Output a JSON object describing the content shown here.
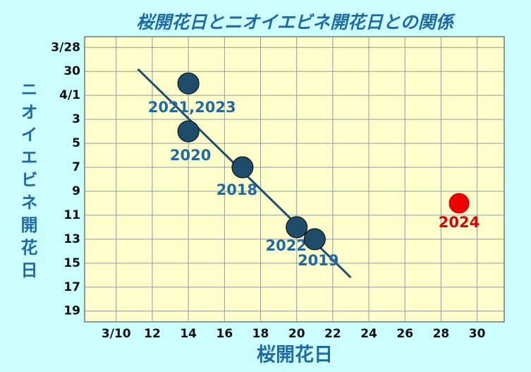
{
  "chart_data": {
    "type": "scatter",
    "title": "桜開花日とニオイエビネ開花日との関係",
    "x_label": "桜開花日",
    "y_label": "ニオイエビネ開花日",
    "x": [
      14,
      14,
      17,
      20,
      21,
      29
    ],
    "y": [
      31,
      35,
      38,
      43,
      44,
      41
    ],
    "labels": [
      "2021,2023",
      "2020",
      "2018",
      "2022",
      "2019",
      "2024"
    ],
    "colors": [
      "#1e4d6b",
      "#1e4d6b",
      "#1e4d6b",
      "#1e4d6b",
      "#1e4d6b",
      "#ee0000"
    ],
    "label_colors": [
      "#1f6aa5",
      "#1f6aa5",
      "#1f6aa5",
      "#1f6aa5",
      "#1f6aa5",
      "#dd0000"
    ],
    "trendline": {
      "x": [
        11.2,
        23.0
      ],
      "y": [
        29.8,
        47.2
      ],
      "color": "#1e4d6b"
    },
    "xlim": [
      8.25,
      31.5
    ],
    "xticks": [
      {
        "value": 10,
        "label": "3/10"
      },
      12,
      14,
      16,
      18,
      20,
      22,
      24,
      26,
      28,
      30
    ],
    "ylim": [
      50.9,
      27.1
    ],
    "yticks": [
      {
        "value": 28,
        "label": "3/28"
      },
      30,
      {
        "value": 32,
        "label": "4/1"
      },
      {
        "value": 34,
        "label": "3"
      },
      {
        "value": 36,
        "label": "5"
      },
      {
        "value": 38,
        "label": "7"
      },
      {
        "value": 40,
        "label": "9"
      },
      {
        "value": 42,
        "label": "11"
      },
      {
        "value": 44,
        "label": "13"
      },
      {
        "value": 46,
        "label": "15"
      },
      {
        "value": 48,
        "label": "17"
      },
      {
        "value": 50,
        "label": "19"
      }
    ],
    "grid": true
  }
}
